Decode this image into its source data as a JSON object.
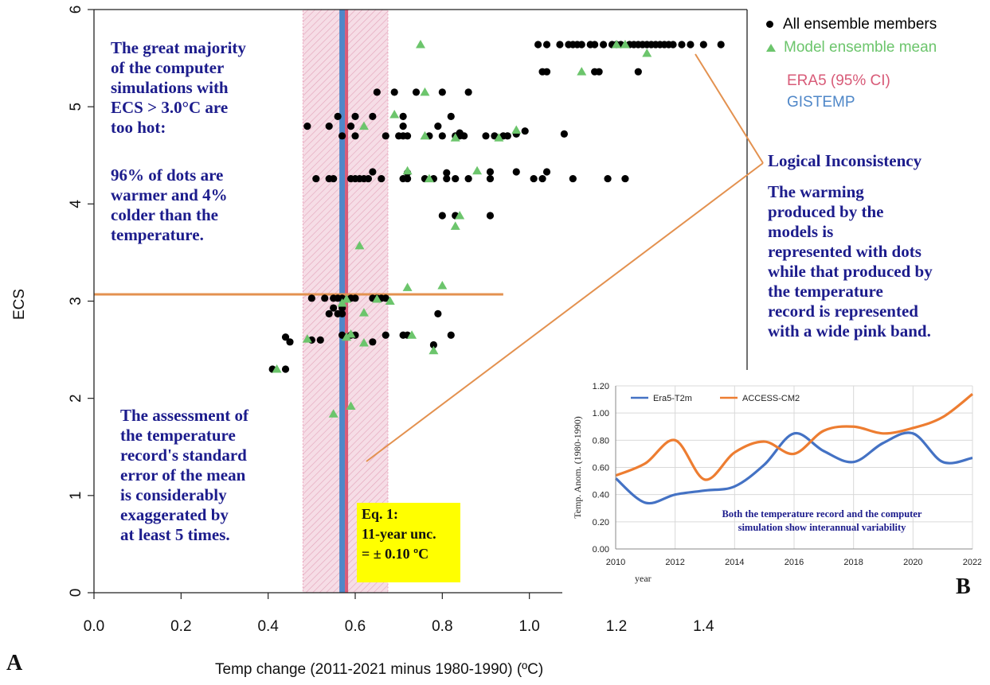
{
  "chart_data": [
    {
      "type": "scatter",
      "panel": "A",
      "xlabel": "Temp change (2011-2021 minus 1980-1990) (ºC)",
      "ylabel": "ECS",
      "xlim": [
        0.0,
        1.5
      ],
      "ylim": [
        0,
        6
      ],
      "xticks": [
        "0.0",
        "0.2",
        "0.4",
        "0.6",
        "0.8",
        "1.0",
        "1.2",
        "1.4"
      ],
      "yticks": [
        "0",
        "1",
        "2",
        "3",
        "4",
        "5",
        "6"
      ],
      "legend_position": "top-right, outside plot",
      "legend": {
        "all_members": "All ensemble members",
        "model_mean": "Model ensemble mean",
        "era5": "ERA5 (95% CI)",
        "gistemp": "GISTEMP"
      },
      "colors": {
        "all_members": "#000000",
        "model_mean": "#6cc56c",
        "era5": "#d85b78",
        "gistemp": "#4f87c8",
        "band": "#e8a3bb",
        "annotation_line": "#e3914f",
        "note_text": "#1c1c8c"
      },
      "era5_mean": 0.58,
      "era5_ci": [
        0.48,
        0.675
      ],
      "gistemp": 0.57,
      "threshold_ecs": 3.07,
      "threshold_x_range": [
        0.0,
        0.94
      ],
      "series": [
        {
          "name": "All ensemble members",
          "marker": "circle",
          "points": [
            [
              1.02,
              5.64
            ],
            [
              1.04,
              5.64
            ],
            [
              1.07,
              5.64
            ],
            [
              1.09,
              5.64
            ],
            [
              1.1,
              5.64
            ],
            [
              1.11,
              5.64
            ],
            [
              1.12,
              5.64
            ],
            [
              1.14,
              5.64
            ],
            [
              1.15,
              5.64
            ],
            [
              1.17,
              5.64
            ],
            [
              1.19,
              5.64
            ],
            [
              1.2,
              5.64
            ],
            [
              1.21,
              5.64
            ],
            [
              1.23,
              5.64
            ],
            [
              1.24,
              5.64
            ],
            [
              1.25,
              5.64
            ],
            [
              1.26,
              5.64
            ],
            [
              1.27,
              5.64
            ],
            [
              1.28,
              5.64
            ],
            [
              1.29,
              5.64
            ],
            [
              1.3,
              5.64
            ],
            [
              1.31,
              5.64
            ],
            [
              1.32,
              5.64
            ],
            [
              1.33,
              5.64
            ],
            [
              1.35,
              5.64
            ],
            [
              1.37,
              5.64
            ],
            [
              1.4,
              5.64
            ],
            [
              1.44,
              5.64
            ],
            [
              1.03,
              5.36
            ],
            [
              1.04,
              5.36
            ],
            [
              1.15,
              5.36
            ],
            [
              1.16,
              5.36
            ],
            [
              1.25,
              5.36
            ],
            [
              0.65,
              5.15
            ],
            [
              0.69,
              5.15
            ],
            [
              0.74,
              5.15
            ],
            [
              0.8,
              5.15
            ],
            [
              0.86,
              5.15
            ],
            [
              0.56,
              4.9
            ],
            [
              0.6,
              4.9
            ],
            [
              0.64,
              4.9
            ],
            [
              0.71,
              4.9
            ],
            [
              0.82,
              4.9
            ],
            [
              0.49,
              4.8
            ],
            [
              0.54,
              4.8
            ],
            [
              0.59,
              4.8
            ],
            [
              0.71,
              4.8
            ],
            [
              0.79,
              4.8
            ],
            [
              0.57,
              4.7
            ],
            [
              0.6,
              4.7
            ],
            [
              0.67,
              4.7
            ],
            [
              0.7,
              4.7
            ],
            [
              0.71,
              4.7
            ],
            [
              0.72,
              4.7
            ],
            [
              0.77,
              4.7
            ],
            [
              0.8,
              4.7
            ],
            [
              0.83,
              4.7
            ],
            [
              0.84,
              4.7
            ],
            [
              0.85,
              4.7
            ],
            [
              0.9,
              4.7
            ],
            [
              0.92,
              4.7
            ],
            [
              0.94,
              4.7
            ],
            [
              0.95,
              4.7
            ],
            [
              0.97,
              4.72
            ],
            [
              0.99,
              4.75
            ],
            [
              1.08,
              4.72
            ],
            [
              0.84,
              4.73
            ],
            [
              0.51,
              4.26
            ],
            [
              0.54,
              4.26
            ],
            [
              0.55,
              4.26
            ],
            [
              0.59,
              4.26
            ],
            [
              0.6,
              4.26
            ],
            [
              0.61,
              4.26
            ],
            [
              0.62,
              4.26
            ],
            [
              0.63,
              4.26
            ],
            [
              0.66,
              4.26
            ],
            [
              0.71,
              4.26
            ],
            [
              0.72,
              4.26
            ],
            [
              0.76,
              4.26
            ],
            [
              0.78,
              4.26
            ],
            [
              0.81,
              4.26
            ],
            [
              0.83,
              4.26
            ],
            [
              0.86,
              4.26
            ],
            [
              0.91,
              4.26
            ],
            [
              0.97,
              4.33
            ],
            [
              1.01,
              4.26
            ],
            [
              1.03,
              4.26
            ],
            [
              1.04,
              4.33
            ],
            [
              1.1,
              4.26
            ],
            [
              1.18,
              4.26
            ],
            [
              1.22,
              4.26
            ],
            [
              0.64,
              4.33
            ],
            [
              0.72,
              4.32
            ],
            [
              0.81,
              4.32
            ],
            [
              0.91,
              4.33
            ],
            [
              0.8,
              3.88
            ],
            [
              0.83,
              3.88
            ],
            [
              0.91,
              3.88
            ],
            [
              0.5,
              3.03
            ],
            [
              0.53,
              3.03
            ],
            [
              0.55,
              3.03
            ],
            [
              0.56,
              3.03
            ],
            [
              0.57,
              3.03
            ],
            [
              0.59,
              3.03
            ],
            [
              0.6,
              3.03
            ],
            [
              0.64,
              3.03
            ],
            [
              0.65,
              3.03
            ],
            [
              0.66,
              3.03
            ],
            [
              0.67,
              3.03
            ],
            [
              0.55,
              2.93
            ],
            [
              0.57,
              2.93
            ],
            [
              0.54,
              2.87
            ],
            [
              0.56,
              2.87
            ],
            [
              0.57,
              2.87
            ],
            [
              0.79,
              2.87
            ],
            [
              0.44,
              2.63
            ],
            [
              0.45,
              2.58
            ],
            [
              0.5,
              2.6
            ],
            [
              0.52,
              2.6
            ],
            [
              0.57,
              2.65
            ],
            [
              0.59,
              2.65
            ],
            [
              0.6,
              2.65
            ],
            [
              0.64,
              2.58
            ],
            [
              0.67,
              2.65
            ],
            [
              0.71,
              2.65
            ],
            [
              0.72,
              2.65
            ],
            [
              0.78,
              2.55
            ],
            [
              0.82,
              2.65
            ],
            [
              0.41,
              2.3
            ],
            [
              0.44,
              2.3
            ]
          ]
        },
        {
          "name": "Model ensemble mean",
          "marker": "triangle",
          "points": [
            [
              0.75,
              5.64
            ],
            [
              1.2,
              5.64
            ],
            [
              1.22,
              5.64
            ],
            [
              1.27,
              5.55
            ],
            [
              1.12,
              5.36
            ],
            [
              0.76,
              5.15
            ],
            [
              0.69,
              4.92
            ],
            [
              0.62,
              4.8
            ],
            [
              0.76,
              4.7
            ],
            [
              0.83,
              4.68
            ],
            [
              0.93,
              4.68
            ],
            [
              0.97,
              4.76
            ],
            [
              0.72,
              4.34
            ],
            [
              0.77,
              4.26
            ],
            [
              0.88,
              4.34
            ],
            [
              0.84,
              3.88
            ],
            [
              0.83,
              3.77
            ],
            [
              0.61,
              3.57
            ],
            [
              0.8,
              3.16
            ],
            [
              0.72,
              3.14
            ],
            [
              0.65,
              3.02
            ],
            [
              0.68,
              3.0
            ],
            [
              0.58,
              3.02
            ],
            [
              0.57,
              2.98
            ],
            [
              0.62,
              2.88
            ],
            [
              0.49,
              2.61
            ],
            [
              0.59,
              2.66
            ],
            [
              0.58,
              2.63
            ],
            [
              0.62,
              2.57
            ],
            [
              0.73,
              2.65
            ],
            [
              0.78,
              2.49
            ],
            [
              0.42,
              2.3
            ],
            [
              0.55,
              1.84
            ],
            [
              0.59,
              1.92
            ]
          ]
        }
      ],
      "annotations": {
        "top_left": [
          "The great majority",
          "of the computer",
          "simulations with",
          "ECS > 3.0°C are",
          "too hot:"
        ],
        "percent": [
          "96% of dots are",
          "warmer and 4%",
          "colder than the",
          "temperature."
        ],
        "bottom_left": [
          "The assessment of",
          "the temperature",
          "record's standard",
          "error of the mean",
          "is considerably",
          "exaggerated  by",
          "at least 5 times."
        ],
        "eq_box": [
          "Eq. 1:",
          "11-year unc.",
          "= ± 0.10 ºC"
        ],
        "inconsistency_title": "Logical Inconsistency",
        "inconsistency_body": [
          "The warming",
          "produced by the",
          "models is",
          "represented with dots",
          "while that produced by",
          "the temperature",
          "record is represented",
          "with a wide pink band."
        ],
        "panel_label": "A"
      }
    },
    {
      "type": "line",
      "panel": "B",
      "xlabel": "year",
      "ylabel": "Temp. Anom. (1980-1990)",
      "xlim": [
        2010,
        2022
      ],
      "ylim": [
        0.0,
        1.2
      ],
      "xticks": [
        "2010",
        "2012",
        "2014",
        "2016",
        "2018",
        "2020",
        "2022"
      ],
      "yticks": [
        "0.00",
        "0.20",
        "0.40",
        "0.60",
        "0.80",
        "1.00",
        "1.20"
      ],
      "grid": true,
      "legend_position": "top-left",
      "x": [
        2010,
        2011,
        2012,
        2013,
        2014,
        2015,
        2016,
        2017,
        2018,
        2019,
        2020,
        2021,
        2022
      ],
      "series": [
        {
          "name": "Era5-T2m",
          "color": "#4472c4",
          "values": [
            0.52,
            0.34,
            0.4,
            0.43,
            0.46,
            0.62,
            0.85,
            0.72,
            0.64,
            0.78,
            0.85,
            0.64,
            0.67
          ]
        },
        {
          "name": "ACCESS-CM2",
          "color": "#ed7d31",
          "values": [
            0.54,
            0.63,
            0.8,
            0.51,
            0.71,
            0.79,
            0.7,
            0.87,
            0.9,
            0.85,
            0.89,
            0.97,
            1.14
          ]
        }
      ],
      "annotation": [
        "Both the temperature record and the computer",
        "simulation show interannual variability"
      ],
      "panel_label": "B"
    }
  ]
}
